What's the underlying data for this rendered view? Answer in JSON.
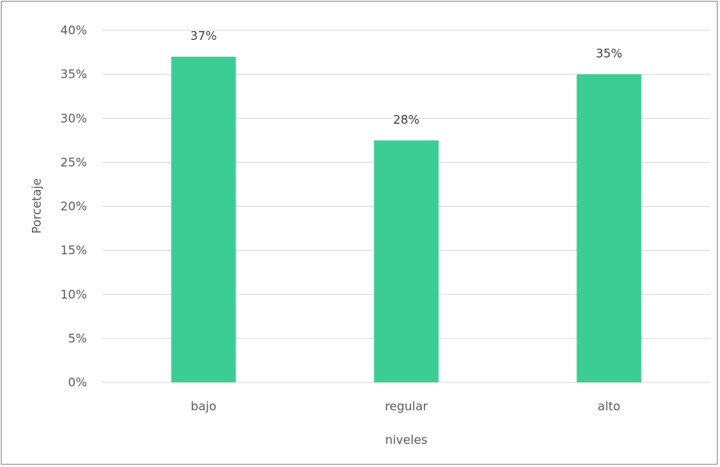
{
  "chart_data": {
    "type": "bar",
    "categories": [
      "bajo",
      "regular",
      "alto"
    ],
    "values": [
      37,
      27.5,
      35
    ],
    "data_labels": [
      "37%",
      "28%",
      "35%"
    ],
    "title": "",
    "xlabel": "niveles",
    "ylabel": "Porcetaje",
    "ylim": [
      0,
      40
    ],
    "yticks": [
      0,
      5,
      10,
      15,
      20,
      25,
      30,
      35,
      40
    ],
    "ytick_labels": [
      "0%",
      "5%",
      "10%",
      "15%",
      "20%",
      "25%",
      "30%",
      "35%",
      "40%"
    ],
    "grid": true,
    "legend": "none",
    "bar_color": "#3ccd95",
    "grid_color": "#d9d9d9"
  }
}
